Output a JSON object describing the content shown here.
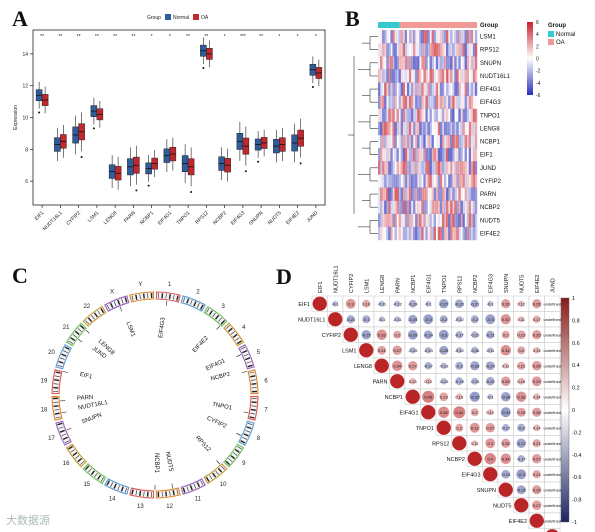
{
  "panels": {
    "a": "A",
    "b": "B",
    "c": "C",
    "d": "D"
  },
  "chart_data": [
    {
      "type": "box",
      "panel": "A",
      "ylabel": "Expression",
      "legend_title": "Group",
      "categories": [
        "EIF1",
        "NUDT16L1",
        "CYFIP2",
        "LSM1",
        "LENG8",
        "PARN",
        "NCBP1",
        "EIF4G1",
        "TNPO1",
        "RPS12",
        "NCBP2",
        "EIF4G3",
        "SNUPN",
        "NUDT5",
        "EIF4E2",
        "JUND"
      ],
      "significance": [
        "**",
        "**",
        "**",
        "**",
        "**",
        "**",
        "*",
        "*",
        "**",
        "**",
        "*",
        "***",
        "**",
        "*",
        "*",
        "*"
      ],
      "ylim": [
        4.5,
        15.5
      ],
      "yticks": [
        6,
        8,
        10,
        12,
        14
      ],
      "series": [
        {
          "name": "Normal",
          "color": "#2f5d9b",
          "medians": [
            11.4,
            8.3,
            8.9,
            10.4,
            6.6,
            6.9,
            6.8,
            7.6,
            7.1,
            14.2,
            7.1,
            8.5,
            8.3,
            8.2,
            8.4,
            13.0
          ]
        },
        {
          "name": "OA",
          "color": "#c0282d",
          "medians": [
            11.1,
            8.5,
            9.1,
            10.2,
            6.5,
            7.0,
            7.1,
            7.7,
            6.9,
            14.0,
            7.0,
            8.2,
            8.4,
            8.3,
            8.7,
            12.8
          ]
        }
      ]
    },
    {
      "type": "heatmap",
      "panel": "B",
      "legend_title": "Group",
      "group_labels": [
        "Normal",
        "OA"
      ],
      "group_colors": [
        "#36c9d0",
        "#f19a95"
      ],
      "rows": [
        "LSM1",
        "RPS12",
        "SNUPN",
        "NUDT16L1",
        "EIF4G1",
        "EIF4G3",
        "TNPO1",
        "LENG8",
        "NCBP1",
        "EIF1",
        "JUND",
        "CYFIP2",
        "PARN",
        "NCBP2",
        "NUDT5",
        "EIF4E2"
      ],
      "colorbar_ticks": [
        6,
        4,
        2,
        0,
        -2,
        -4,
        -6
      ],
      "colorbar_low": "#2b2fb8",
      "colorbar_high": "#c81e2a"
    },
    {
      "type": "circos",
      "panel": "C",
      "chromosomes": [
        "1",
        "2",
        "3",
        "4",
        "5",
        "6",
        "7",
        "8",
        "9",
        "10",
        "11",
        "12",
        "13",
        "14",
        "15",
        "16",
        "17",
        "18",
        "19",
        "20",
        "21",
        "22",
        "X",
        "Y"
      ],
      "genes": [
        "EIF4G3",
        "EIF4E2",
        "EIF4G1",
        "NCBP2",
        "TNPO1",
        "CYFIP2",
        "RPS12",
        "NUDT5",
        "NCBP1",
        "SNUPN",
        "NUDT16L1",
        "PARN",
        "EIF1",
        "JUND",
        "LENG8",
        "LSM1"
      ]
    },
    {
      "type": "correlation",
      "panel": "D",
      "genes": [
        "EIF1",
        "NUDT16L1",
        "CYFIP2",
        "LSM1",
        "LENG8",
        "PARN",
        "NCBP1",
        "EIF4G1",
        "TNPO1",
        "RPS12",
        "NCBP2",
        "EIF4G3",
        "SNUPN",
        "NUDT5",
        "EIF4E2",
        "JUND"
      ],
      "colorbar_ticks": [
        "1",
        "0.8",
        "0.6",
        "0.4",
        "0.2",
        "0",
        "-0.2",
        "-0.4",
        "-0.6",
        "-0.8",
        "-1"
      ],
      "matrix_upper": [
        [
          -0.1,
          0.3,
          0.19,
          -0.11,
          -0.12,
          -0.19,
          -0.1,
          -0.27,
          -0.23,
          -0.21,
          -0.1,
          0.26,
          0.12,
          0.26
        ],
        [
          -0.21,
          -0.2,
          -0.1,
          -0.11,
          -0.25,
          -0.3,
          -0.2,
          -0.12,
          -0.2,
          -0.3,
          0.32,
          0.11,
          0.17
        ],
        [
          -0.27,
          0.33,
          0.2,
          -0.29,
          -0.24,
          -0.3,
          -0.17,
          -0.15,
          -0.21,
          0.2,
          0.23,
          0.26
        ],
        [
          0.24,
          0.27,
          -0.13,
          -0.13,
          -0.25,
          -0.12,
          -0.16,
          -0.11,
          0.34,
          0.2,
          0.13
        ],
        [
          0.34,
          0.27,
          -0.17,
          -0.13,
          -0.2,
          -0.26,
          -0.24,
          0.11,
          0.21,
          0.28
        ],
        [
          0.13,
          0.12,
          -0.13,
          -0.19,
          -0.15,
          -0.22,
          0.28,
          0.15,
          0.29
        ],
        [
          0.45,
          0.23,
          0.13,
          -0.32,
          -0.1,
          -0.28,
          0.33,
          0.14
        ],
        [
          0.38,
          0.44,
          0.2,
          0.12,
          -0.31,
          0.25,
          0.26
        ],
        [
          0.2,
          0.31,
          0.27,
          -0.17,
          -0.2,
          0.14
        ],
        [
          0.11,
          0.3,
          0.26,
          -0.27,
          0.21
        ],
        [
          0.4,
          0.34,
          -0.17,
          0.27
        ],
        [
          -0.23,
          -0.3,
          0.21
        ],
        [
          -0.25,
          0.26
        ],
        [
          0.27
        ],
        []
      ]
    }
  ],
  "watermark": "大数据源"
}
